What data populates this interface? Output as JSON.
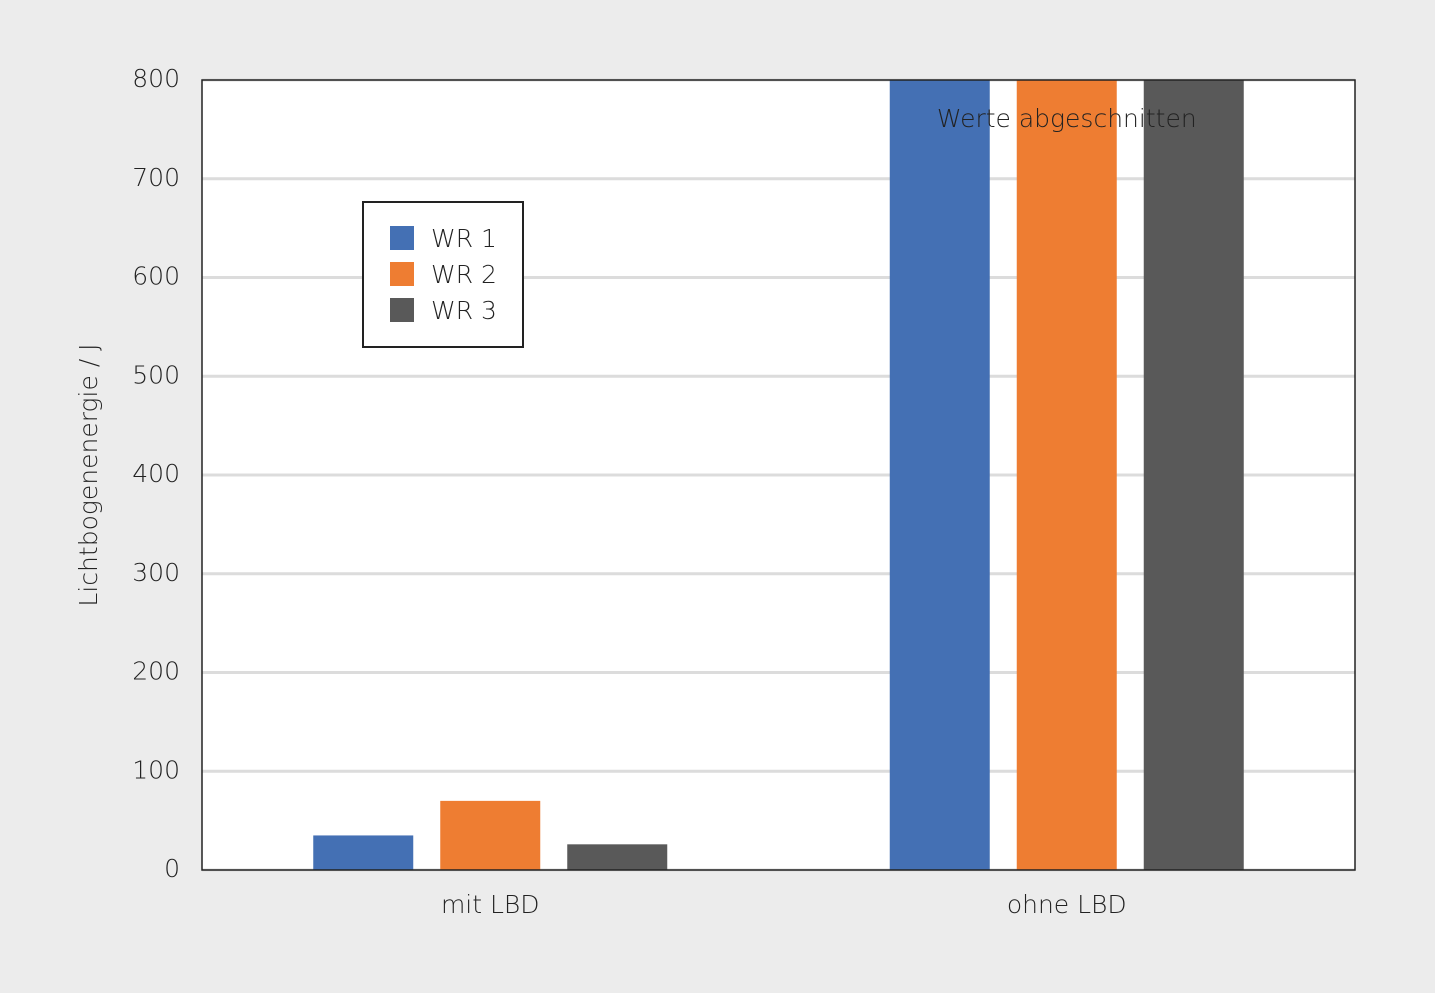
{
  "chart_data": {
    "type": "bar",
    "y_label": "Lichtbogenenergie / J",
    "annotation": "Werte abgeschnitten",
    "categories": [
      "mit LBD",
      "ohne LBD"
    ],
    "series": [
      {
        "name": "WR 1",
        "color": "#4470b4",
        "values": [
          35,
          800
        ]
      },
      {
        "name": "WR 2",
        "color": "#ee7d32",
        "values": [
          70,
          800
        ]
      },
      {
        "name": "WR 3",
        "color": "#595959",
        "values": [
          26,
          800
        ]
      }
    ],
    "ylim": [
      0,
      800
    ],
    "yticks": [
      0,
      100,
      200,
      300,
      400,
      500,
      600,
      700,
      800
    ],
    "grid": true,
    "legend": "upper left"
  }
}
